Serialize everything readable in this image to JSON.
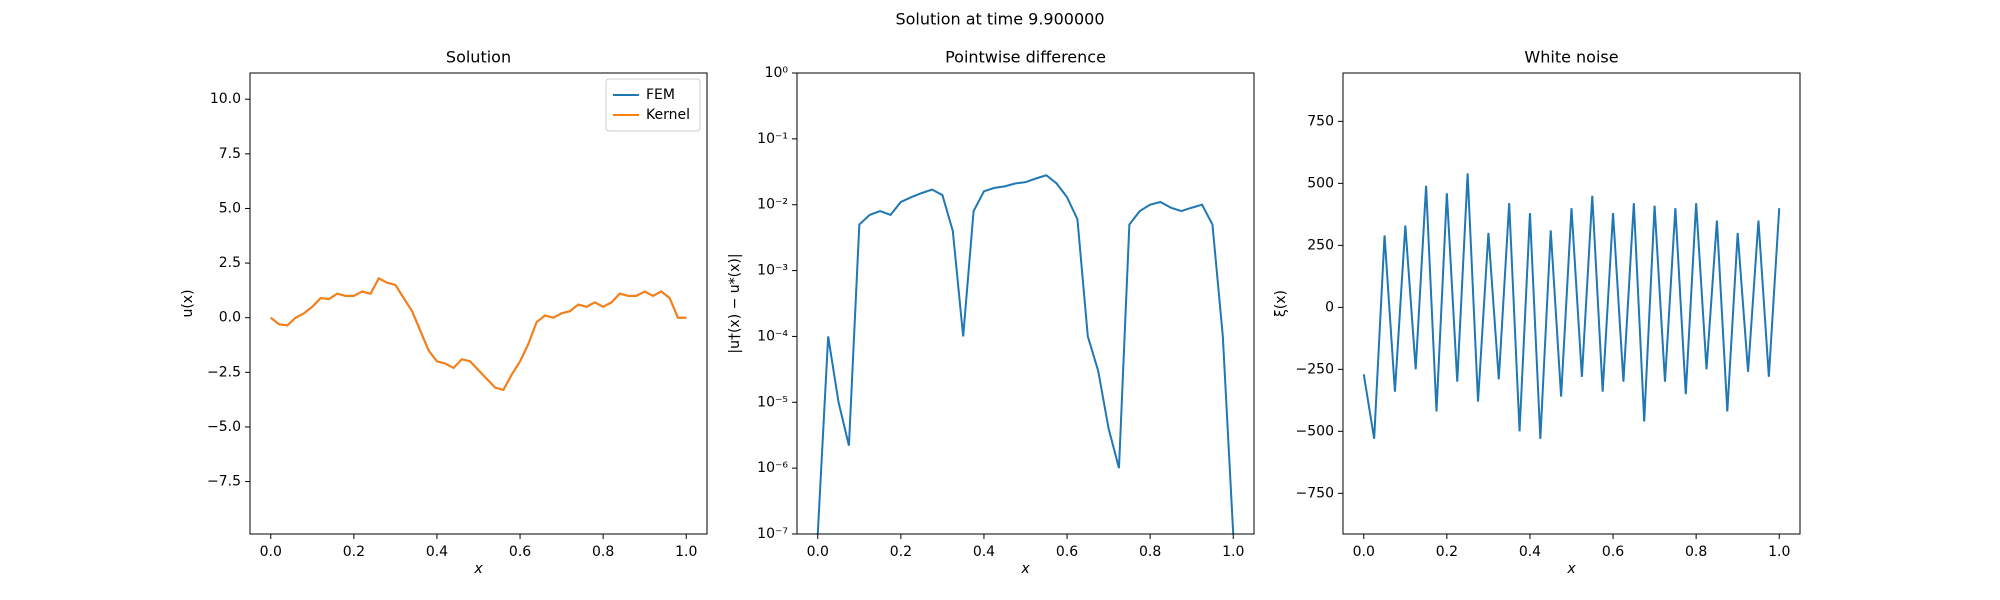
{
  "suptitle": "Solution at time 9.900000",
  "chart_data": [
    {
      "type": "line",
      "title": "Solution",
      "xlabel": "x",
      "ylabel": "u(x)",
      "x": [
        0,
        0.02,
        0.04,
        0.06,
        0.08,
        0.1,
        0.12,
        0.14,
        0.16,
        0.18,
        0.2,
        0.22,
        0.24,
        0.26,
        0.28,
        0.3,
        0.32,
        0.34,
        0.36,
        0.38,
        0.4,
        0.42,
        0.44,
        0.46,
        0.48,
        0.5,
        0.52,
        0.54,
        0.56,
        0.58,
        0.6,
        0.62,
        0.64,
        0.66,
        0.68,
        0.7,
        0.72,
        0.74,
        0.76,
        0.78,
        0.8,
        0.82,
        0.84,
        0.86,
        0.88,
        0.9,
        0.92,
        0.94,
        0.96,
        0.98,
        1.0
      ],
      "series": [
        {
          "name": "FEM",
          "color": "#1f77b4",
          "values": [
            0,
            -0.3,
            -0.35,
            0,
            0.2,
            0.5,
            0.9,
            0.85,
            1.1,
            1.0,
            1.0,
            1.2,
            1.1,
            1.8,
            1.6,
            1.5,
            0.9,
            0.3,
            -0.6,
            -1.5,
            -2.0,
            -2.1,
            -2.3,
            -1.9,
            -2.0,
            -2.4,
            -2.8,
            -3.2,
            -3.3,
            -2.6,
            -2.0,
            -1.2,
            -0.2,
            0.1,
            0.0,
            0.2,
            0.3,
            0.6,
            0.5,
            0.7,
            0.5,
            0.7,
            1.1,
            1.0,
            1.0,
            1.2,
            1.0,
            1.2,
            0.9,
            0.0,
            0.0
          ]
        },
        {
          "name": "Kernel",
          "color": "#ff7f0e",
          "values": [
            0,
            -0.3,
            -0.35,
            0,
            0.2,
            0.5,
            0.9,
            0.85,
            1.1,
            1.0,
            1.0,
            1.2,
            1.1,
            1.8,
            1.6,
            1.5,
            0.9,
            0.3,
            -0.6,
            -1.5,
            -2.0,
            -2.1,
            -2.3,
            -1.9,
            -2.0,
            -2.4,
            -2.8,
            -3.2,
            -3.3,
            -2.6,
            -2.0,
            -1.2,
            -0.2,
            0.1,
            0.0,
            0.2,
            0.3,
            0.6,
            0.5,
            0.7,
            0.5,
            0.7,
            1.1,
            1.0,
            1.0,
            1.2,
            1.0,
            1.2,
            0.9,
            0.0,
            0.0
          ]
        }
      ],
      "legend": "upper right",
      "xlim": [
        -0.05,
        1.05
      ],
      "xticks": [
        {
          "value": 0,
          "label": "0.0"
        },
        {
          "value": 0.2,
          "label": "0.2"
        },
        {
          "value": 0.4,
          "label": "0.4"
        },
        {
          "value": 0.6,
          "label": "0.6"
        },
        {
          "value": 0.8,
          "label": "0.8"
        },
        {
          "value": 1,
          "label": "1.0"
        }
      ],
      "ylim": [
        -9.9,
        11.2
      ],
      "yticks": [
        {
          "value": -7.5,
          "label": "−7.5"
        },
        {
          "value": -5,
          "label": "−5.0"
        },
        {
          "value": -2.5,
          "label": "−2.5"
        },
        {
          "value": 0,
          "label": "0.0"
        },
        {
          "value": 2.5,
          "label": "2.5"
        },
        {
          "value": 5,
          "label": "5.0"
        },
        {
          "value": 7.5,
          "label": "7.5"
        },
        {
          "value": 10,
          "label": "10.0"
        }
      ]
    },
    {
      "type": "line",
      "title": "Pointwise difference",
      "xlabel": "x",
      "ylabel": "|u†(x) − u*(x)|",
      "yscale": "log",
      "x": [
        0,
        0.025,
        0.05,
        0.075,
        0.1,
        0.125,
        0.15,
        0.175,
        0.2,
        0.225,
        0.25,
        0.275,
        0.3,
        0.325,
        0.35,
        0.375,
        0.4,
        0.425,
        0.45,
        0.475,
        0.5,
        0.525,
        0.55,
        0.575,
        0.6,
        0.625,
        0.65,
        0.675,
        0.7,
        0.725,
        0.75,
        0.775,
        0.8,
        0.825,
        0.85,
        0.875,
        0.9,
        0.925,
        0.95,
        0.975,
        1.0
      ],
      "series": [
        {
          "color": "#1f77b4",
          "values": [
            1e-07,
            0.0001,
            1e-05,
            2.2e-06,
            0.005,
            0.007,
            0.008,
            0.007,
            0.011,
            0.013,
            0.015,
            0.017,
            0.014,
            0.004,
            0.0001,
            0.008,
            0.016,
            0.018,
            0.019,
            0.021,
            0.022,
            0.025,
            0.028,
            0.021,
            0.013,
            0.006,
            0.0001,
            3e-05,
            4e-06,
            1e-06,
            0.005,
            0.008,
            0.01,
            0.011,
            0.009,
            0.008,
            0.009,
            0.01,
            0.005,
            0.0001,
            1e-07
          ]
        }
      ],
      "xlim": [
        -0.05,
        1.05
      ],
      "xticks": [
        {
          "value": 0,
          "label": "0.0"
        },
        {
          "value": 0.2,
          "label": "0.2"
        },
        {
          "value": 0.4,
          "label": "0.4"
        },
        {
          "value": 0.6,
          "label": "0.6"
        },
        {
          "value": 0.8,
          "label": "0.8"
        },
        {
          "value": 1,
          "label": "1.0"
        }
      ],
      "ylim": [
        1e-07,
        1
      ],
      "yticks": [
        {
          "value": 1e-07,
          "label": "10⁻⁷"
        },
        {
          "value": 1e-06,
          "label": "10⁻⁶"
        },
        {
          "value": 1e-05,
          "label": "10⁻⁵"
        },
        {
          "value": 0.0001,
          "label": "10⁻⁴"
        },
        {
          "value": 0.001,
          "label": "10⁻³"
        },
        {
          "value": 0.01,
          "label": "10⁻²"
        },
        {
          "value": 0.1,
          "label": "10⁻¹"
        },
        {
          "value": 1,
          "label": "10⁰"
        }
      ]
    },
    {
      "type": "line",
      "title": "White noise",
      "xlabel": "x",
      "ylabel": "ξ(x)",
      "x": [
        0,
        0.025,
        0.05,
        0.075,
        0.1,
        0.125,
        0.15,
        0.175,
        0.2,
        0.225,
        0.25,
        0.275,
        0.3,
        0.325,
        0.35,
        0.375,
        0.4,
        0.425,
        0.45,
        0.475,
        0.5,
        0.525,
        0.55,
        0.575,
        0.6,
        0.625,
        0.65,
        0.675,
        0.7,
        0.725,
        0.75,
        0.775,
        0.8,
        0.825,
        0.85,
        0.875,
        0.9,
        0.925,
        0.95,
        0.975,
        1.0
      ],
      "series": [
        {
          "color": "#1f77b4",
          "values": [
            -270,
            -530,
            290,
            -340,
            330,
            -250,
            490,
            -420,
            460,
            -300,
            540,
            -380,
            300,
            -290,
            420,
            -500,
            380,
            -530,
            310,
            -360,
            400,
            -280,
            450,
            -340,
            380,
            -300,
            420,
            -460,
            410,
            -300,
            400,
            -350,
            420,
            -250,
            350,
            -420,
            300,
            -260,
            350,
            -280,
            400
          ]
        }
      ],
      "xlim": [
        -0.05,
        1.05
      ],
      "xticks": [
        {
          "value": 0,
          "label": "0.0"
        },
        {
          "value": 0.2,
          "label": "0.2"
        },
        {
          "value": 0.4,
          "label": "0.4"
        },
        {
          "value": 0.6,
          "label": "0.6"
        },
        {
          "value": 0.8,
          "label": "0.8"
        },
        {
          "value": 1,
          "label": "1.0"
        }
      ],
      "ylim": [
        -914,
        945
      ],
      "yticks": [
        {
          "value": -750,
          "label": "−750"
        },
        {
          "value": -500,
          "label": "−500"
        },
        {
          "value": -250,
          "label": "−250"
        },
        {
          "value": 0,
          "label": "0"
        },
        {
          "value": 250,
          "label": "250"
        },
        {
          "value": 500,
          "label": "500"
        },
        {
          "value": 750,
          "label": "750"
        }
      ]
    }
  ]
}
